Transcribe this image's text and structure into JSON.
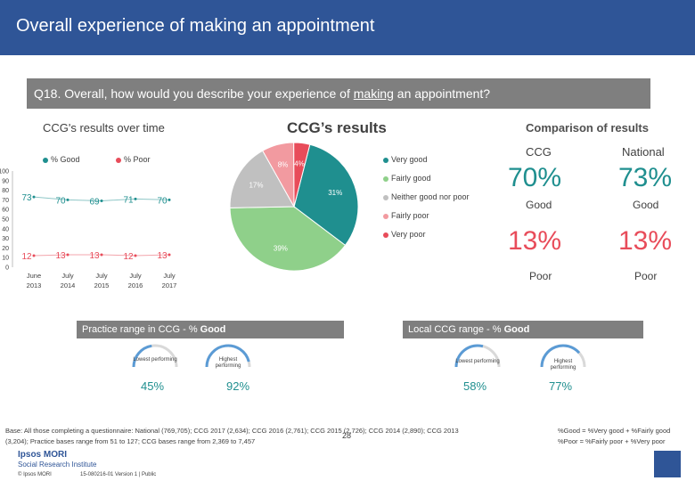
{
  "title": "Overall experience of making an appointment",
  "question": {
    "prefix": "Q18. Overall, how would you describe your experience of ",
    "underlined": "making",
    "suffix": " an appointment?"
  },
  "headings": {
    "over_time": "CCG's results over time",
    "ccg_results": "CCG’s results",
    "comparison": "Comparison of results"
  },
  "chart_data": [
    {
      "type": "line",
      "title": "CCG's results over time",
      "categories": [
        "June 2013",
        "July 2014",
        "July 2015",
        "July 2016",
        "July 2017"
      ],
      "series": [
        {
          "name": "% Good",
          "values": [
            73,
            70,
            69,
            71,
            70
          ],
          "color": "#1f8f8f"
        },
        {
          "name": "% Poor",
          "values": [
            12,
            13,
            13,
            12,
            13
          ],
          "color": "#e84c5a"
        }
      ],
      "ylim": [
        0,
        100
      ],
      "yticks": [
        "100",
        "90",
        "80",
        "70",
        "60",
        "50",
        "40",
        "30",
        "20",
        "10",
        "0"
      ]
    },
    {
      "type": "pie",
      "title": "CCG’s results",
      "slices": [
        {
          "name": "Very good",
          "value": 31,
          "label": "31%",
          "color": "#1f8f8f"
        },
        {
          "name": "Fairly good",
          "value": 39,
          "label": "39%",
          "color": "#8fd08a"
        },
        {
          "name": "Neither good nor poor",
          "value": 17,
          "label": "17%",
          "color": "#c0c0c0"
        },
        {
          "name": "Fairly poor",
          "value": 8,
          "label": "8%",
          "color": "#f29aa0"
        },
        {
          "name": "Very poor",
          "value": 4,
          "label": "4%",
          "color": "#e84c5a"
        }
      ],
      "legend": [
        "Very good",
        "Fairly good",
        "Neither good nor poor",
        "Fairly poor",
        "Very poor"
      ]
    }
  ],
  "comparison": {
    "col_ccg": "CCG",
    "col_national": "National",
    "good_ccg": "70%",
    "good_national": "73%",
    "good_label": "Good",
    "poor_ccg": "13%",
    "poor_national": "13%",
    "poor_label": "Poor"
  },
  "practice_range": {
    "label_prefix": "Practice range in CCG - % ",
    "label_bold": "Good",
    "lowest_label": "Lowest performing",
    "highest_label": "Highest performing",
    "lowest_value": "45%",
    "highest_value": "92%",
    "lowest_frac": 0.45,
    "highest_frac": 0.92
  },
  "local_range": {
    "label_prefix": "Local CCG range - % ",
    "label_bold": "Good",
    "lowest_label": "Lowest performing",
    "highest_label": "Highest performing",
    "lowest_value": "58%",
    "highest_value": "77%",
    "lowest_frac": 0.58,
    "highest_frac": 0.77
  },
  "footnote": {
    "base": "Base: All those completing a questionnaire: National (769,705); CCG 2017 (2,634); CCG 2016 (2,761); CCG 2015 (2,726); CCG 2014 (2,890); CCG 2013 (3,204); Practice bases range from 51 to 127; CCG bases range from 2,369 to 7,457",
    "good_def": "%Good = %Very good + %Fairly good",
    "poor_def": "%Poor = %Fairly poor + %Very poor",
    "page": "28",
    "brand1": "Ipsos MORI",
    "brand2": "Social Research Institute",
    "copyright": "© Ipsos MORI",
    "version": "15-080216-01 Version 1 | Public"
  },
  "colors": {
    "good": "#1f8f8f",
    "poor": "#e84c5a",
    "header": "#2f5597",
    "bar": "#7f7f7f"
  }
}
